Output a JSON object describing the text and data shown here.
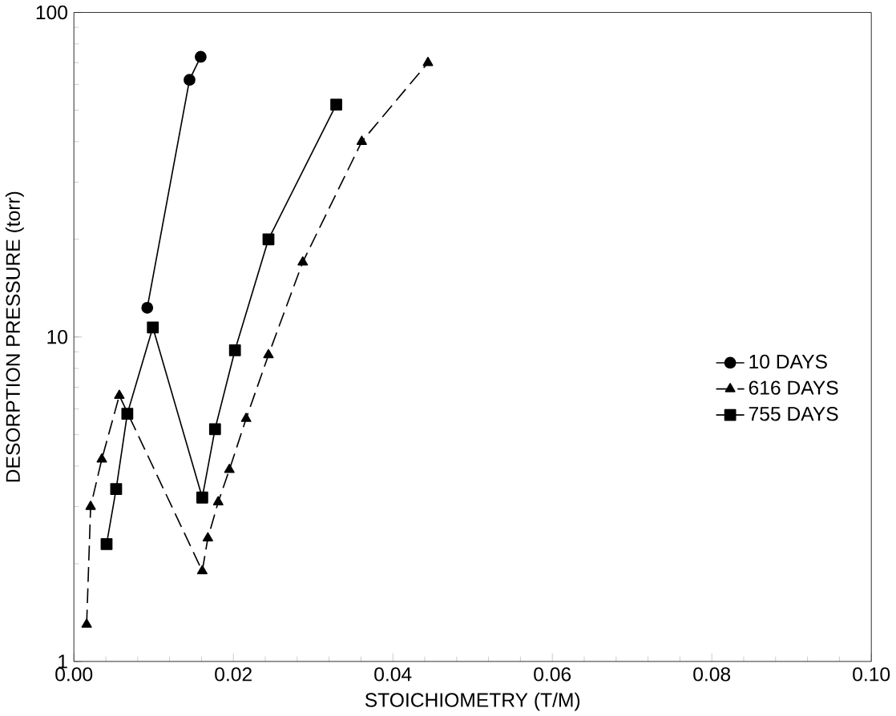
{
  "chart_data": {
    "type": "line",
    "xlabel": "STOICHIOMETRY (T/M)",
    "ylabel": "DESORPTION PRESSURE (torr)",
    "log": "y",
    "xlim": [
      0,
      0.1
    ],
    "ylim": [
      1,
      100
    ],
    "xticks": [
      {
        "value": 0,
        "label": "0.00"
      },
      {
        "value": 0.02,
        "label": "0.02"
      },
      {
        "value": 0.04,
        "label": "0.04"
      },
      {
        "value": 0.06,
        "label": "0.06"
      },
      {
        "value": 0.08,
        "label": "0.08"
      },
      {
        "value": 0.1,
        "label": "0.10"
      }
    ],
    "yticks": [
      1,
      10,
      100
    ],
    "legend": "right",
    "grid": false,
    "series": [
      {
        "name": "10 DAYS",
        "color": "#000000",
        "marker": "circle",
        "line_style": "solid",
        "x": [
          0.0092,
          0.0145,
          0.0159
        ],
        "values": [
          12.3,
          62,
          73
        ]
      },
      {
        "name": "616 DAYS",
        "color": "#000000",
        "marker": "triangle",
        "line_style": "dashed",
        "x": [
          0.0016,
          0.0021,
          0.0035,
          0.0057,
          0.0098,
          0.0161,
          0.0168,
          0.0181,
          0.0195,
          0.0216,
          0.0244,
          0.0287,
          0.0361,
          0.0444
        ],
        "values": [
          1.3,
          3.0,
          4.2,
          6.6,
          null,
          1.9,
          2.4,
          3.1,
          3.9,
          5.6,
          8.8,
          17,
          40,
          70
        ]
      },
      {
        "name": "755 DAYS",
        "color": "#000000",
        "marker": "square",
        "line_style": "solid",
        "x": [
          0.0041,
          0.0053,
          0.0067,
          0.0099,
          0.0161,
          0.0177,
          0.0202,
          0.0244,
          0.0329
        ],
        "values": [
          2.3,
          3.4,
          5.8,
          10.7,
          3.2,
          5.2,
          9.1,
          20,
          52
        ]
      }
    ]
  }
}
